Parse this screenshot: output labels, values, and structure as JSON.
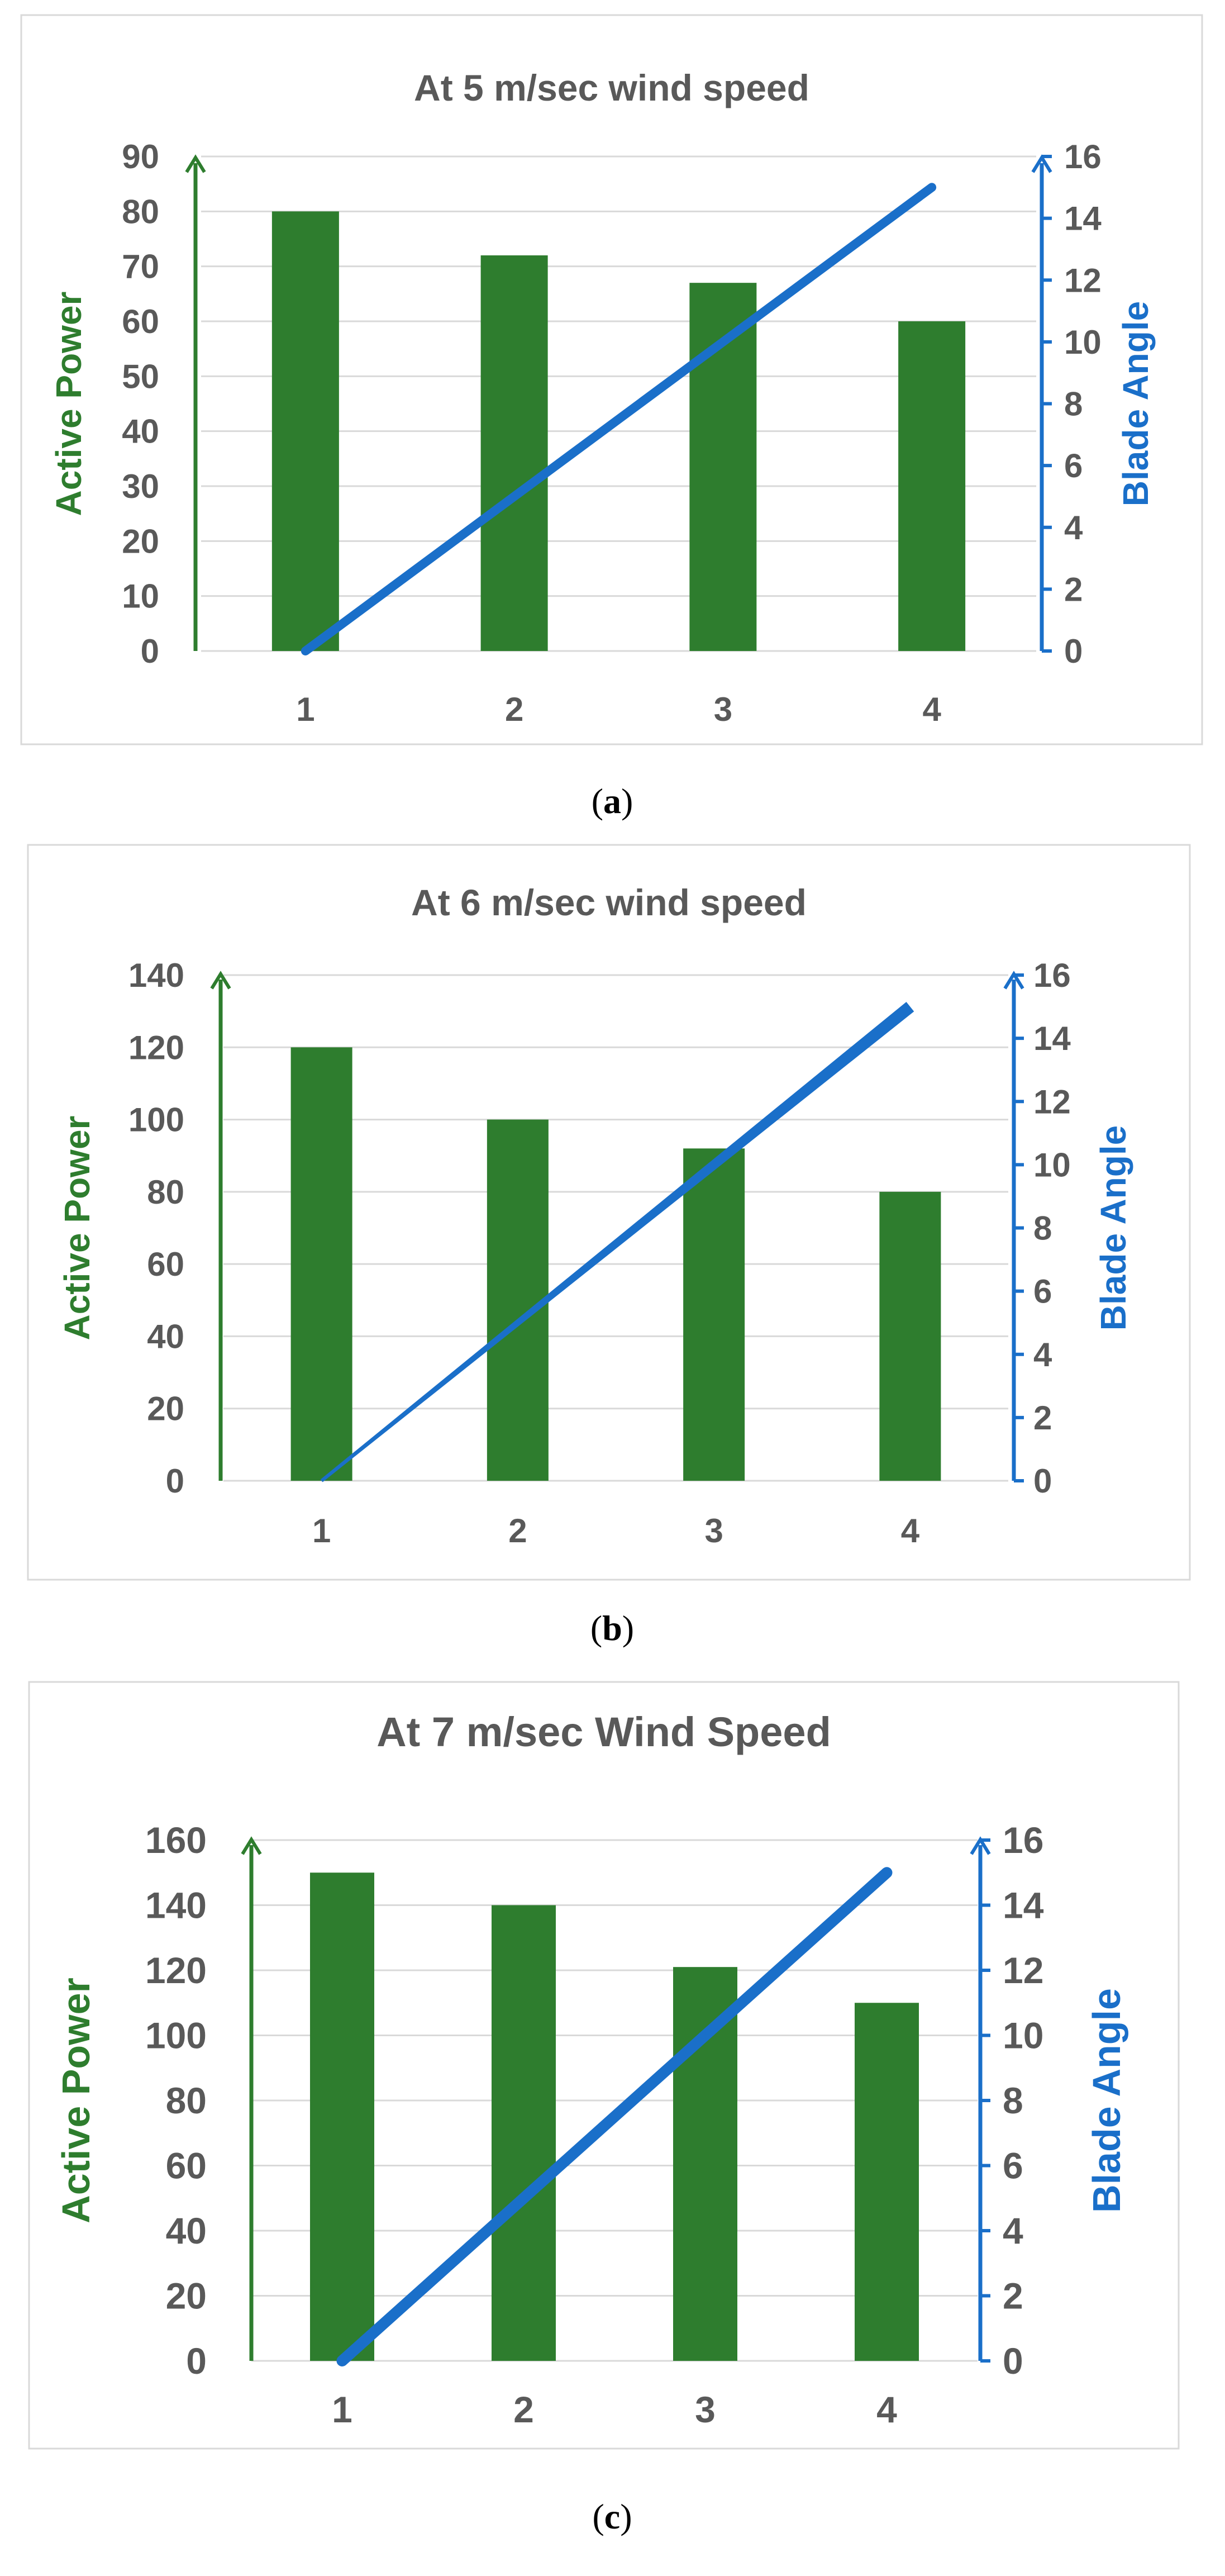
{
  "colors": {
    "bar": "#2e7d2e",
    "line": "#1a6fc9",
    "text": "#595959",
    "grid": "#d9d9d9",
    "caption": "#000000"
  },
  "chart_data": [
    {
      "type": "bar",
      "title": "At 5 m/sec wind speed",
      "categories": [
        "1",
        "2",
        "3",
        "4"
      ],
      "ylabel": "Active Power",
      "y2label": "Blade Angle",
      "ylim": [
        0,
        90
      ],
      "y_ticks": [
        "0",
        "10",
        "20",
        "30",
        "40",
        "50",
        "60",
        "70",
        "80",
        "90"
      ],
      "y2lim": [
        0,
        16
      ],
      "y2_ticks": [
        "0",
        "2",
        "4",
        "6",
        "8",
        "10",
        "12",
        "14",
        "16"
      ],
      "series": [
        {
          "type": "bar",
          "axis": "left",
          "values": [
            80,
            72,
            67,
            60
          ]
        },
        {
          "type": "line",
          "axis": "right",
          "values": [
            0,
            5,
            10,
            15
          ]
        }
      ],
      "caption_letter": "a",
      "line_style": "thick"
    },
    {
      "type": "bar",
      "title": "At 6 m/sec wind speed",
      "categories": [
        "1",
        "2",
        "3",
        "4"
      ],
      "ylabel": "Active Power",
      "y2label": "Blade Angle",
      "ylim": [
        0,
        140
      ],
      "y_ticks": [
        "0",
        "20",
        "40",
        "60",
        "80",
        "100",
        "120",
        "140"
      ],
      "y2lim": [
        0,
        16
      ],
      "y2_ticks": [
        "0",
        "2",
        "4",
        "6",
        "8",
        "10",
        "12",
        "14",
        "16"
      ],
      "series": [
        {
          "type": "bar",
          "axis": "left",
          "values": [
            120,
            100,
            92,
            80
          ]
        },
        {
          "type": "line",
          "axis": "right",
          "values": [
            0,
            5,
            10,
            15
          ]
        }
      ],
      "caption_letter": "b",
      "line_style": "tapered"
    },
    {
      "type": "bar",
      "title": "At 7 m/sec Wind Speed",
      "categories": [
        "1",
        "2",
        "3",
        "4"
      ],
      "ylabel": "Active Power",
      "y2label": "Blade Angle",
      "ylim": [
        0,
        160
      ],
      "y_ticks": [
        "0",
        "20",
        "40",
        "60",
        "80",
        "100",
        "120",
        "140",
        "160"
      ],
      "y2lim": [
        0,
        16
      ],
      "y2_ticks": [
        "0",
        "2",
        "4",
        "6",
        "8",
        "10",
        "12",
        "14",
        "16"
      ],
      "series": [
        {
          "type": "bar",
          "axis": "left",
          "values": [
            150,
            140,
            121,
            110
          ]
        },
        {
          "type": "line",
          "axis": "right",
          "values": [
            0,
            5,
            10,
            15
          ]
        }
      ],
      "caption_letter": "c",
      "line_style": "thick"
    }
  ]
}
